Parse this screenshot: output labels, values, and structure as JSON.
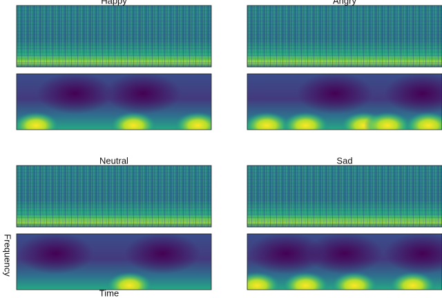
{
  "panels": [
    {
      "title": "Happy"
    },
    {
      "title": "Angry"
    },
    {
      "title": "Neutral"
    },
    {
      "title": "Sad"
    }
  ],
  "y_axis_label": "Frequency",
  "x_axis_label": "Time"
}
